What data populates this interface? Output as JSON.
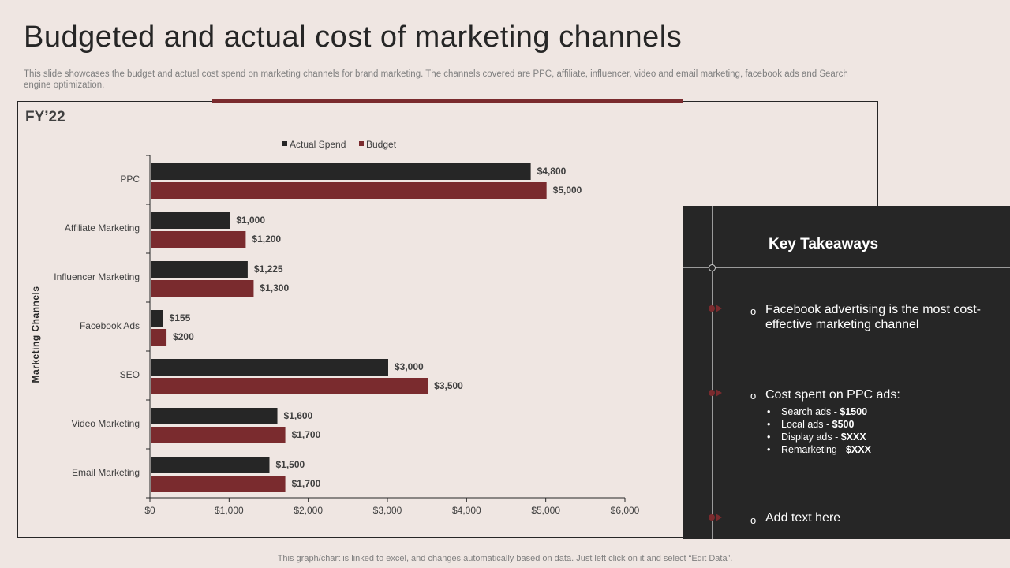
{
  "title": "Budgeted and actual cost of marketing channels",
  "subtitle": "This slide showcases the budget and actual cost spend on marketing channels for brand marketing. The channels covered are PPC, affiliate, influencer, video and email marketing, facebook ads and Search engine optimization.",
  "chart_label": "FY’22",
  "colors": {
    "actual": "#262626",
    "budget": "#7a2b2e",
    "accent": "#7a2b2e"
  },
  "chart_data": {
    "type": "bar",
    "orientation": "horizontal",
    "categories": [
      "PPC",
      "Affiliate Marketing",
      "Influencer Marketing",
      "Facebook Ads",
      "SEO",
      "Video Marketing",
      "Email Marketing"
    ],
    "series": [
      {
        "name": "Actual Spend",
        "values": [
          4800,
          1000,
          1225,
          155,
          3000,
          1600,
          1500
        ],
        "labels": [
          "$4,800",
          "$1,000",
          "$1,225",
          "$155",
          "$3,000",
          "$1,600",
          "$1,500"
        ]
      },
      {
        "name": "Budget",
        "values": [
          5000,
          1200,
          1300,
          200,
          3500,
          1700,
          1700
        ],
        "labels": [
          "$5,000",
          "$1,200",
          "$1,300",
          "$200",
          "$3,500",
          "$1,700",
          "$1,700"
        ]
      }
    ],
    "xticks": [
      0,
      1000,
      2000,
      3000,
      4000,
      5000,
      6000
    ],
    "xtick_labels": [
      "$0",
      "$1,000",
      "$2,000",
      "$3,000",
      "$4,000",
      "$5,000",
      "$6,000"
    ],
    "xlim": [
      0,
      6000
    ],
    "ylabel": "Marketing Channels",
    "legend_position": "top"
  },
  "takeaways": {
    "title": "Key Takeaways",
    "point1": "Facebook advertising is the most cost-effective marketing channel",
    "point1_line1": "Facebook advertising is the most cost-",
    "point1_line2": "effective marketing channel",
    "point2": "Cost spent on PPC ads:",
    "subpoints": [
      {
        "label": "Search ads - ",
        "value": "$1500"
      },
      {
        "label": "Local ads - ",
        "value": "$500"
      },
      {
        "label": "Display ads - ",
        "value": "$XXX"
      },
      {
        "label": "Remarketing - ",
        "value": "$XXX"
      }
    ],
    "point3": "Add text here"
  },
  "footer": "This graph/chart is linked to excel,  and changes automatically based on data. Just left click on it and select “Edit Data”."
}
